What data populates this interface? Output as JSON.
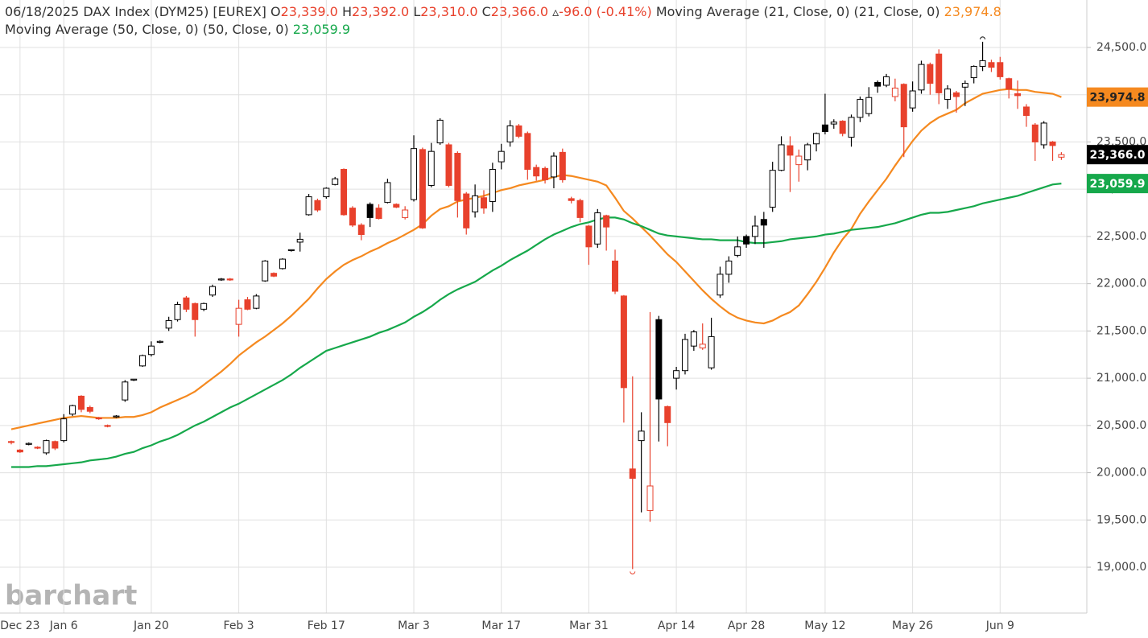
{
  "chart_data": {
    "type": "candlestick",
    "header": {
      "date": "06/18/2025",
      "instrument": "DAX Index (DYM25) [EUREX]",
      "quote": [
        {
          "key": "O",
          "value": "23,339.0"
        },
        {
          "key": "H",
          "value": "23,392.0"
        },
        {
          "key": "L",
          "value": "23,310.0"
        },
        {
          "key": "C",
          "value": "23,366.0"
        },
        {
          "key": "▵",
          "value": "-96.0 (-0.41%)"
        }
      ]
    },
    "watermark": "barchart",
    "categories": [
      null,
      "Dec 23",
      null,
      null,
      null,
      null,
      "Jan 6",
      null,
      null,
      null,
      null,
      null,
      null,
      null,
      null,
      null,
      "Jan 20",
      null,
      null,
      null,
      null,
      null,
      null,
      null,
      null,
      null,
      "Feb 3",
      null,
      null,
      null,
      null,
      null,
      null,
      null,
      null,
      null,
      "Feb 17",
      null,
      null,
      null,
      null,
      null,
      null,
      null,
      null,
      null,
      "Mar 3",
      null,
      null,
      null,
      null,
      null,
      null,
      null,
      null,
      null,
      "Mar 17",
      null,
      null,
      null,
      null,
      null,
      null,
      null,
      null,
      null,
      "Mar 31",
      null,
      null,
      null,
      null,
      null,
      null,
      null,
      null,
      null,
      "Apr 14",
      null,
      null,
      null,
      null,
      null,
      null,
      null,
      "Apr 28",
      null,
      null,
      null,
      null,
      null,
      null,
      null,
      null,
      "May 12",
      null,
      null,
      null,
      null,
      null,
      null,
      null,
      null,
      null,
      "May 26",
      null,
      null,
      null,
      null,
      null,
      null,
      null,
      null,
      null,
      "Jun 9",
      null,
      null,
      null,
      null,
      null,
      null,
      null
    ],
    "open": [
      20330,
      20240,
      20300,
      20270,
      20210,
      20330,
      20340,
      20620,
      20810,
      20690,
      20580,
      20500,
      20590,
      20770,
      20980,
      21130,
      21250,
      21380,
      21530,
      21620,
      21850,
      21790,
      21730,
      21880,
      22040,
      22050,
      21570,
      21830,
      21740,
      22030,
      22110,
      22160,
      22350,
      22440,
      22730,
      22880,
      22920,
      23050,
      23210,
      22800,
      22620,
      22840,
      22800,
      22860,
      22840,
      22700,
      22890,
      23420,
      23040,
      23490,
      23470,
      23380,
      22950,
      22760,
      22910,
      22870,
      23290,
      23500,
      23670,
      23590,
      23230,
      23220,
      23130,
      23390,
      22900,
      22880,
      22610,
      22420,
      22720,
      22240,
      21870,
      20040,
      20340,
      19600,
      21620,
      20700,
      21000,
      21080,
      21340,
      21320,
      21110,
      21880,
      22100,
      22300,
      22500,
      22500,
      22680,
      22810,
      23200,
      23460,
      23260,
      23310,
      23480,
      23680,
      23690,
      23720,
      23550,
      23760,
      23800,
      24130,
      24100,
      23980,
      24110,
      23860,
      24050,
      24320,
      24430,
      23950,
      24020,
      24080,
      24180,
      24300,
      24340,
      24340,
      24170,
      24010,
      23870,
      23680,
      23470,
      23500,
      23339
    ],
    "high": [
      20340,
      20250,
      20320,
      20280,
      20350,
      20340,
      20620,
      20720,
      20820,
      20710,
      20590,
      20510,
      20610,
      20980,
      20990,
      21250,
      21390,
      21400,
      21650,
      21810,
      21870,
      21800,
      21800,
      21990,
      22060,
      22060,
      21830,
      21860,
      21890,
      22250,
      22120,
      22270,
      22360,
      22540,
      22950,
      22900,
      23020,
      23130,
      23220,
      22820,
      22640,
      22860,
      22840,
      23110,
      22850,
      22820,
      23570,
      23440,
      23490,
      23750,
      23490,
      23400,
      22970,
      23050,
      22990,
      23280,
      23480,
      23730,
      23690,
      23610,
      23260,
      23240,
      23390,
      23430,
      22920,
      22900,
      22620,
      22790,
      22730,
      22360,
      21880,
      21020,
      20640,
      21700,
      21660,
      20710,
      21120,
      21470,
      21510,
      21580,
      21640,
      22180,
      22290,
      22500,
      22520,
      22720,
      22760,
      23290,
      23560,
      23560,
      23420,
      23490,
      23600,
      24010,
      23740,
      23730,
      23790,
      23980,
      24080,
      24150,
      24220,
      24170,
      24120,
      24140,
      24360,
      24340,
      24480,
      24100,
      24040,
      24150,
      24310,
      24560,
      24370,
      24400,
      24180,
      24150,
      23900,
      23700,
      23720,
      23510,
      23392
    ],
    "low": [
      20300,
      20210,
      20290,
      20250,
      20190,
      20240,
      20320,
      20600,
      20640,
      20630,
      20560,
      20480,
      20580,
      20750,
      20970,
      21120,
      21230,
      21370,
      21500,
      21600,
      21700,
      21440,
      21710,
      21860,
      22030,
      22030,
      21440,
      21720,
      21730,
      22020,
      22070,
      22150,
      22340,
      22340,
      22720,
      22760,
      22900,
      23040,
      22720,
      22600,
      22460,
      22600,
      22680,
      22850,
      22800,
      22680,
      22870,
      22580,
      23020,
      23470,
      23020,
      22700,
      22520,
      22700,
      22740,
      22760,
      23210,
      23450,
      23540,
      23100,
      23090,
      23060,
      23010,
      23070,
      22850,
      22650,
      22200,
      22380,
      22350,
      21890,
      20530,
      18980,
      19580,
      19480,
      20330,
      20280,
      20880,
      21040,
      21290,
      21300,
      21090,
      21850,
      22010,
      22280,
      22380,
      22420,
      22380,
      22760,
      23190,
      22970,
      23080,
      23200,
      23400,
      23580,
      23640,
      23560,
      23450,
      23710,
      23770,
      24020,
      24080,
      23930,
      23340,
      23820,
      24010,
      24000,
      23900,
      23850,
      23810,
      23880,
      24120,
      24250,
      24240,
      24160,
      23960,
      23850,
      23660,
      23300,
      23430,
      23300,
      23310
    ],
    "close": [
      20320,
      20220,
      20310,
      20260,
      20340,
      20260,
      20570,
      20710,
      20670,
      20650,
      20570,
      20490,
      20600,
      20960,
      20990,
      21240,
      21340,
      21390,
      21610,
      21780,
      21730,
      21620,
      21790,
      21970,
      22050,
      22040,
      21740,
      21730,
      21870,
      22240,
      22080,
      22260,
      22360,
      22470,
      22920,
      22780,
      23010,
      23110,
      22730,
      22620,
      22520,
      22700,
      22690,
      23070,
      22810,
      22780,
      23430,
      22590,
      23400,
      23730,
      23040,
      22880,
      22590,
      22930,
      22800,
      23210,
      23400,
      23670,
      23560,
      23210,
      23140,
      23100,
      23350,
      23100,
      22880,
      22700,
      22390,
      22750,
      22600,
      21920,
      20900,
      19940,
      20440,
      19860,
      20780,
      20530,
      21080,
      21410,
      21490,
      21360,
      21440,
      22100,
      22240,
      22390,
      22420,
      22610,
      22620,
      23200,
      23470,
      23360,
      23350,
      23470,
      23590,
      23610,
      23710,
      23590,
      23760,
      23950,
      23970,
      24090,
      24190,
      24070,
      23660,
      24040,
      24320,
      24120,
      24020,
      24060,
      23980,
      24120,
      24300,
      24360,
      24290,
      24190,
      24060,
      23990,
      23780,
      23500,
      23700,
      23462,
      23366
    ],
    "last_close_label": "23,366.0",
    "up_color": "#000000",
    "down_color": "#e8412c",
    "series": [
      {
        "name": "Moving Average (21, Close, 0)",
        "params": "(21, Close, 0)",
        "color": "#f5891f",
        "last_label": "23,974.8",
        "values": [
          20460,
          20480,
          20500,
          20520,
          20540,
          20560,
          20580,
          20590,
          20600,
          20590,
          20580,
          20580,
          20580,
          20590,
          20590,
          20610,
          20640,
          20690,
          20730,
          20770,
          20810,
          20860,
          20930,
          21000,
          21070,
          21150,
          21240,
          21310,
          21380,
          21440,
          21510,
          21580,
          21660,
          21750,
          21840,
          21950,
          22050,
          22130,
          22200,
          22250,
          22290,
          22340,
          22380,
          22430,
          22470,
          22520,
          22570,
          22630,
          22720,
          22790,
          22820,
          22870,
          22890,
          22910,
          22930,
          22960,
          22990,
          23010,
          23040,
          23060,
          23080,
          23100,
          23130,
          23150,
          23140,
          23120,
          23100,
          23080,
          23040,
          22910,
          22770,
          22690,
          22600,
          22510,
          22410,
          22310,
          22230,
          22130,
          22030,
          21930,
          21840,
          21760,
          21690,
          21640,
          21610,
          21590,
          21580,
          21610,
          21660,
          21700,
          21770,
          21890,
          22020,
          22170,
          22330,
          22470,
          22580,
          22740,
          22870,
          22990,
          23110,
          23250,
          23380,
          23510,
          23620,
          23700,
          23760,
          23800,
          23840,
          23910,
          23960,
          24010,
          24030,
          24050,
          24060,
          24050,
          24050,
          24030,
          24020,
          24010,
          23974.8
        ]
      },
      {
        "name": "Moving Average (50, Close, 0)",
        "params": "(50, Close, 0)",
        "color": "#16a84b",
        "last_label": "23,059.9",
        "values": [
          20060,
          20060,
          20060,
          20070,
          20070,
          20080,
          20090,
          20100,
          20110,
          20130,
          20140,
          20150,
          20170,
          20200,
          20220,
          20260,
          20290,
          20330,
          20360,
          20400,
          20450,
          20500,
          20540,
          20590,
          20640,
          20690,
          20730,
          20780,
          20830,
          20880,
          20930,
          20980,
          21040,
          21110,
          21170,
          21230,
          21290,
          21320,
          21350,
          21380,
          21410,
          21440,
          21480,
          21510,
          21550,
          21590,
          21650,
          21700,
          21760,
          21830,
          21890,
          21940,
          21980,
          22020,
          22080,
          22140,
          22190,
          22250,
          22300,
          22350,
          22410,
          22470,
          22520,
          22560,
          22600,
          22630,
          22650,
          22680,
          22700,
          22700,
          22680,
          22640,
          22610,
          22570,
          22530,
          22510,
          22500,
          22490,
          22480,
          22470,
          22470,
          22460,
          22460,
          22460,
          22440,
          22430,
          22430,
          22440,
          22450,
          22470,
          22480,
          22490,
          22500,
          22520,
          22530,
          22550,
          22570,
          22580,
          22590,
          22600,
          22620,
          22640,
          22670,
          22700,
          22730,
          22750,
          22750,
          22760,
          22780,
          22800,
          22820,
          22850,
          22870,
          22890,
          22910,
          22930,
          22960,
          22990,
          23020,
          23050,
          23059.9
        ]
      }
    ],
    "ylim": [
      18515,
      25002
    ],
    "yticks": [
      {
        "value": 19000,
        "label": "19,000.0"
      },
      {
        "value": 19500,
        "label": "19,500.0"
      },
      {
        "value": 20000,
        "label": "20,000.0"
      },
      {
        "value": 20500,
        "label": "20,500.0"
      },
      {
        "value": 21000,
        "label": "21,000.0"
      },
      {
        "value": 21500,
        "label": "21,500.0"
      },
      {
        "value": 22000,
        "label": "22,000.0"
      },
      {
        "value": 22500,
        "label": "22,500.0"
      },
      {
        "value": 23000,
        "label": "23,000.0"
      },
      {
        "value": 23500,
        "label": "23,500.0"
      },
      {
        "value": 24000,
        "label": "24,000.0"
      },
      {
        "value": 24500,
        "label": "24,500.0"
      }
    ],
    "grid": true
  }
}
